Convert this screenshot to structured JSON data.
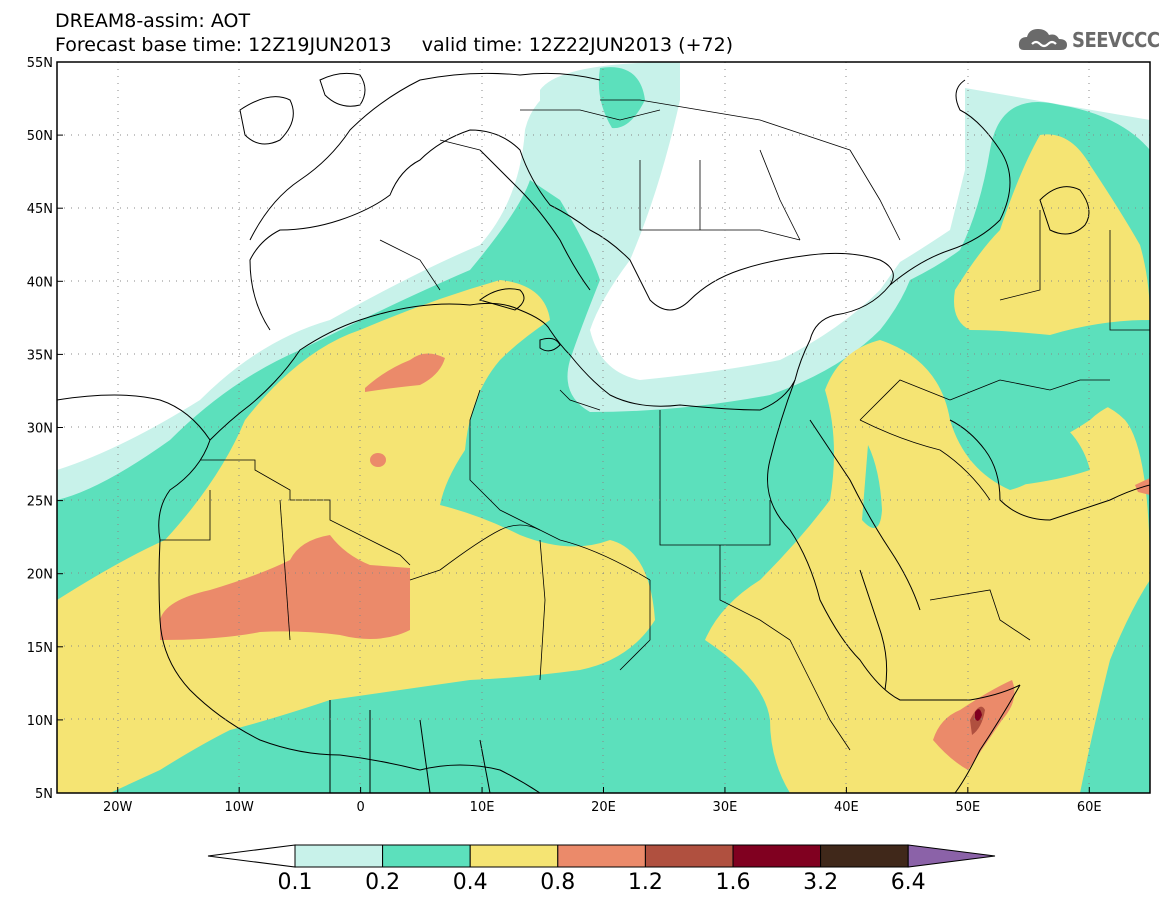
{
  "header": {
    "title_line1": "DREAM8-assim: AOT",
    "title_line2": "Forecast base time: 12Z19JUN2013     valid time: 12Z22JUN2013 (+72)",
    "logo_text": "SEEVCCC"
  },
  "map": {
    "lon_range": [
      -25,
      65
    ],
    "lat_range": [
      5,
      55
    ],
    "lat_labels": [
      "55N",
      "50N",
      "45N",
      "40N",
      "35N",
      "30N",
      "25N",
      "20N",
      "15N",
      "10N",
      "5N"
    ],
    "lat_values": [
      55,
      50,
      45,
      40,
      35,
      30,
      25,
      20,
      15,
      10,
      5
    ],
    "lon_labels": [
      "20W",
      "10W",
      "0",
      "10E",
      "20E",
      "30E",
      "40E",
      "50E",
      "60E"
    ],
    "lon_values": [
      -20,
      -10,
      0,
      10,
      20,
      30,
      40,
      50,
      60
    ]
  },
  "colorbar": {
    "labels": [
      "0.1",
      "0.2",
      "0.4",
      "0.8",
      "1.2",
      "1.6",
      "3.2",
      "6.4"
    ],
    "colors": [
      "#c8f2ea",
      "#5ce0bc",
      "#f5e473",
      "#eb8a6a",
      "#b0503f",
      "#800020",
      "#40281a",
      "#8b62a8"
    ]
  }
}
